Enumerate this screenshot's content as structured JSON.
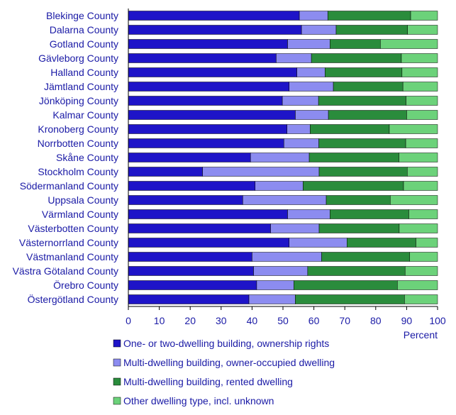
{
  "chart_data": {
    "type": "bar",
    "orientation": "horizontal",
    "stacked": true,
    "categories": [
      "Blekinge County",
      "Dalarna County",
      "Gotland County",
      "Gävleborg County",
      "Halland County",
      "Jämtland County",
      "Jönköping County",
      "Kalmar County",
      "Kronoberg County",
      "Norrbotten County",
      "Skåne County",
      "Stockholm County",
      "Södermanland County",
      "Uppsala County",
      "Värmland County",
      "Västerbotten County",
      "Västernorrland County",
      "Västmanland County",
      "Västra Götaland County",
      "Örebro County",
      "Östergötland County"
    ],
    "series": [
      {
        "name": "One- or two-dwelling building, ownership rights",
        "color": "#1e14c8",
        "values": [
          55.3,
          56.0,
          51.5,
          47.8,
          54.5,
          52.0,
          49.8,
          54.0,
          51.3,
          50.3,
          39.5,
          24.0,
          41.0,
          37.0,
          51.5,
          46.0,
          52.0,
          40.0,
          40.5,
          41.5,
          39.0
        ]
      },
      {
        "name": "Multi-dwelling building, owner-occupied dwelling",
        "color": "#8c8cf0",
        "values": [
          9.2,
          11.2,
          13.7,
          11.4,
          9.1,
          14.3,
          11.7,
          10.7,
          7.5,
          11.3,
          19.0,
          37.7,
          15.5,
          27.0,
          13.7,
          15.7,
          18.7,
          22.5,
          17.5,
          12.0,
          15.0
        ]
      },
      {
        "name": "Multi-dwelling building, rented dwelling",
        "color": "#2a8c3c",
        "values": [
          26.8,
          23.1,
          16.3,
          29.1,
          24.9,
          22.5,
          28.3,
          25.3,
          25.6,
          28.1,
          29.0,
          28.5,
          32.5,
          20.7,
          25.5,
          25.9,
          22.3,
          28.5,
          31.5,
          33.5,
          35.3
        ]
      },
      {
        "name": "Other dwelling type, incl. unknown",
        "color": "#6cd27a",
        "values": [
          8.7,
          9.7,
          18.5,
          11.7,
          11.5,
          11.2,
          10.2,
          10.0,
          15.6,
          10.3,
          12.5,
          9.8,
          11.0,
          15.3,
          9.3,
          12.4,
          7.0,
          9.0,
          10.5,
          13.0,
          10.7
        ]
      }
    ],
    "x_ticks": [
      0,
      10,
      20,
      30,
      40,
      50,
      60,
      70,
      80,
      90,
      100
    ],
    "xlabel": "Percent",
    "xlim": [
      0,
      100
    ],
    "grid": false,
    "legend_position": "bottom"
  }
}
